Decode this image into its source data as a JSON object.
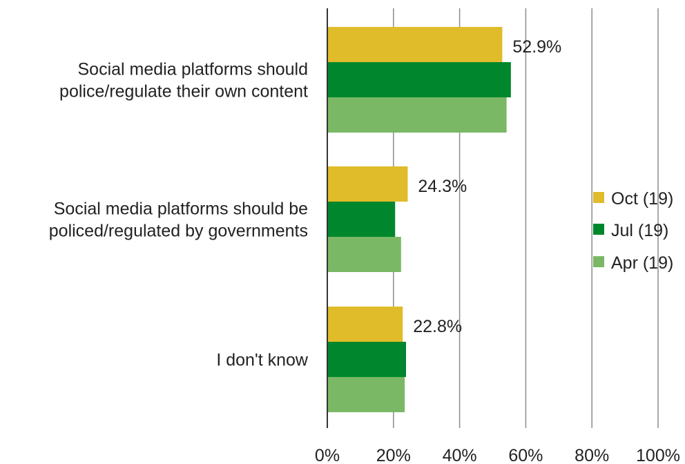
{
  "chart_data": {
    "type": "bar",
    "orientation": "horizontal",
    "categories": [
      [
        "Social media platforms should",
        "police/regulate their own content"
      ],
      [
        "Social media platforms should be",
        "policed/regulated by governments"
      ],
      [
        "I don't know"
      ]
    ],
    "series": [
      {
        "name": "Oct (19)",
        "color": "#e0bb2a",
        "values": [
          52.9,
          24.3,
          22.8
        ],
        "data_labels": [
          "52.9%",
          "24.3%",
          "22.8%"
        ]
      },
      {
        "name": "Jul (19)",
        "color": "#00872d",
        "values": [
          55.5,
          20.5,
          23.8
        ]
      },
      {
        "name": "Apr (19)",
        "color": "#7ab865",
        "values": [
          54.2,
          22.3,
          23.4
        ]
      }
    ],
    "xlim": [
      0,
      100
    ],
    "x_ticks": [
      "0%",
      "20%",
      "40%",
      "60%",
      "80%",
      "100%"
    ],
    "grid": "vertical",
    "legend_position": "right"
  }
}
